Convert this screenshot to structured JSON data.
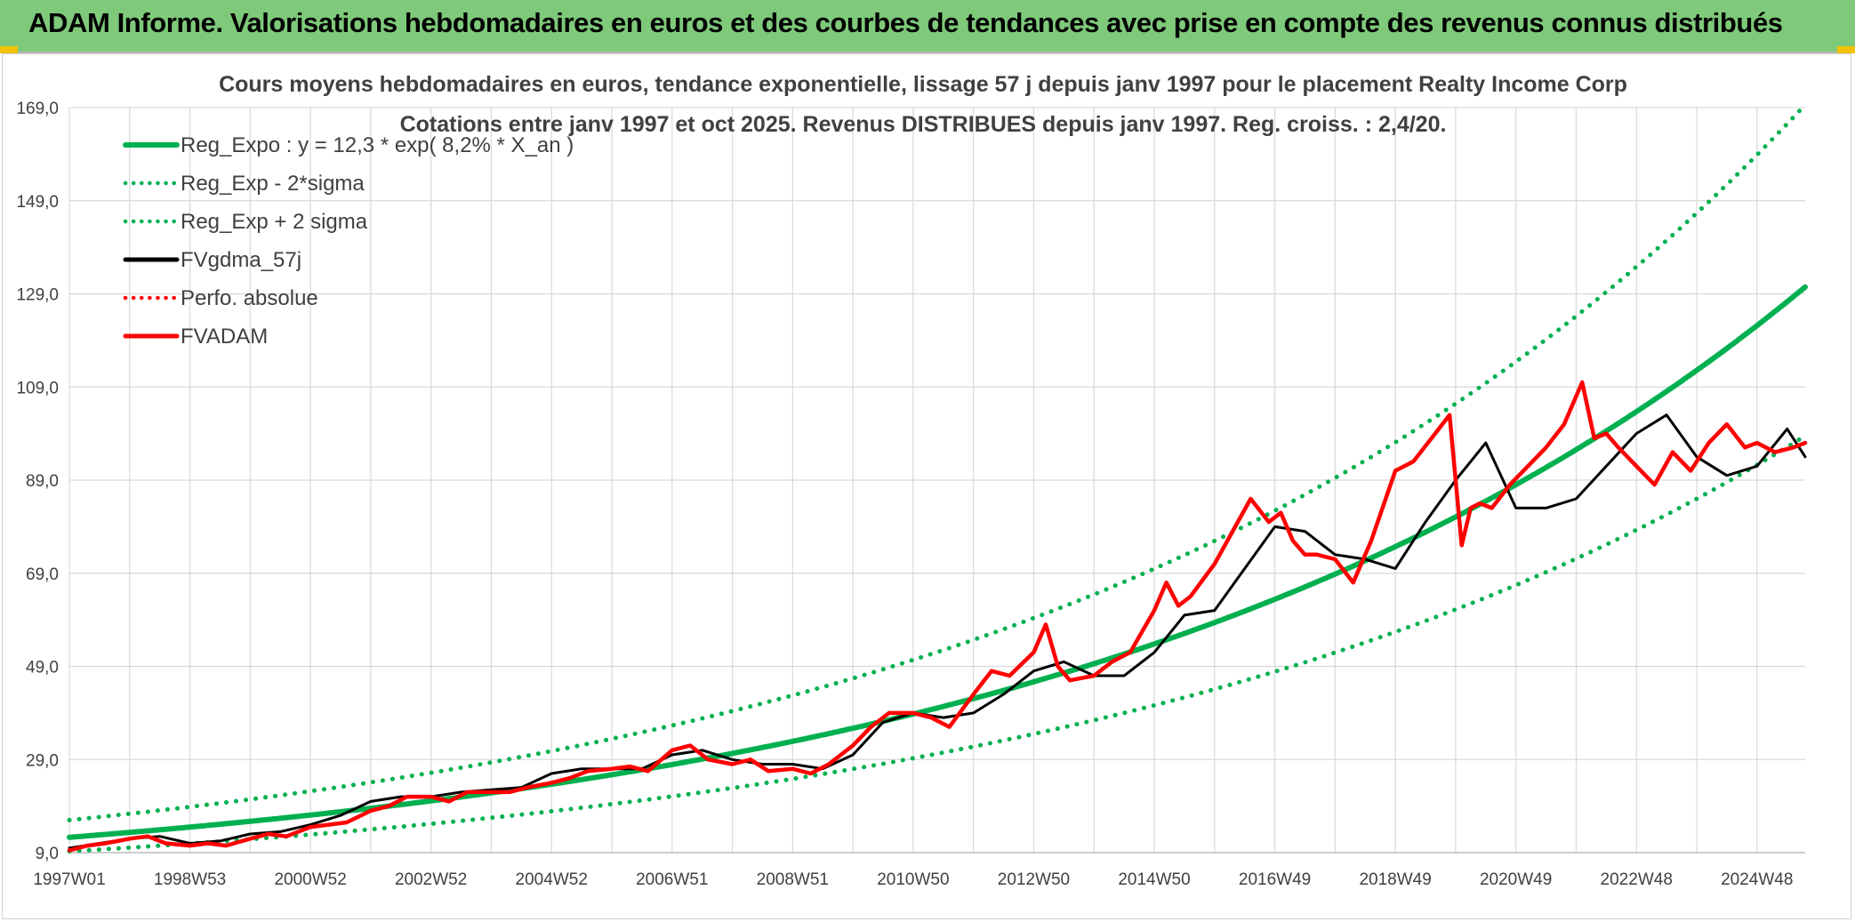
{
  "header": {
    "title": "ADAM Informe. Valorisations hebdomadaires en euros et des courbes de tendances avec prise en compte des revenus connus distribués",
    "background": "#7ec97a"
  },
  "chart_data": {
    "type": "line",
    "title_line1": "Cours moyens hebdomadaires en euros, tendance exponentielle, lissage 57 j depuis janv 1997 pour le placement Realty Income Corp",
    "title_line2": "Cotations entre janv 1997 et oct 2025. Revenus DISTRIBUES depuis janv 1997. Reg. croiss. : 2,4/20.",
    "xlabel": "",
    "ylabel": "",
    "ylim": [
      9,
      169
    ],
    "xlim": [
      1997.0,
      2025.8
    ],
    "y_ticks": [
      "9,0",
      "29,0",
      "49,0",
      "69,0",
      "89,0",
      "109,0",
      "129,0",
      "149,0",
      "169,0"
    ],
    "y_tick_values": [
      9,
      29,
      49,
      69,
      89,
      109,
      129,
      149,
      169
    ],
    "x_ticks": [
      "1997W01",
      "1998W53",
      "2000W52",
      "2002W52",
      "2004W52",
      "2006W51",
      "2008W51",
      "2010W50",
      "2012W50",
      "2014W50",
      "2016W49",
      "2018W49",
      "2020W49",
      "2022W48",
      "2024W48"
    ],
    "x_tick_values": [
      1997.0,
      1999.0,
      2001.0,
      2003.0,
      2005.0,
      2007.0,
      2009.0,
      2011.0,
      2013.0,
      2015.0,
      2017.0,
      2019.0,
      2021.0,
      2023.0,
      2025.0
    ],
    "grid": true,
    "legend_position": "top-left",
    "series": [
      {
        "name": "Reg_Expo : y = 12,3 * exp( 8,2% *  X_an )",
        "style": "solid",
        "color": "#00b050",
        "kind": "exp",
        "a": 12.3,
        "rate": 0.082,
        "factor": 1.0
      },
      {
        "name": "Reg_Exp - 2*sigma",
        "style": "dotted",
        "color": "#00b050",
        "kind": "exp",
        "a": 12.3,
        "rate": 0.082,
        "factor": 0.755
      },
      {
        "name": "Reg_Exp + 2 sigma",
        "style": "dotted",
        "color": "#00b050",
        "kind": "exp",
        "a": 12.3,
        "rate": 0.082,
        "factor": 1.3
      },
      {
        "name": "FVgdma_57j",
        "style": "solid",
        "color": "#000000",
        "kind": "data",
        "x": [
          1997.0,
          1997.5,
          1998.0,
          1998.5,
          1999.0,
          1999.5,
          2000.0,
          2000.5,
          2001.0,
          2001.5,
          2002.0,
          2002.5,
          2003.0,
          2003.5,
          2004.0,
          2004.5,
          2005.0,
          2005.5,
          2006.0,
          2006.5,
          2007.0,
          2007.5,
          2008.0,
          2008.5,
          2009.0,
          2009.5,
          2010.0,
          2010.5,
          2011.0,
          2011.5,
          2012.0,
          2012.5,
          2013.0,
          2013.5,
          2014.0,
          2014.5,
          2015.0,
          2015.5,
          2016.0,
          2016.5,
          2017.0,
          2017.5,
          2018.0,
          2018.5,
          2019.0,
          2019.5,
          2020.0,
          2020.5,
          2021.0,
          2021.5,
          2022.0,
          2022.5,
          2023.0,
          2023.5,
          2024.0,
          2024.5,
          2025.0,
          2025.5,
          2025.8
        ],
        "y": [
          10,
          11,
          12,
          12.5,
          11,
          11.5,
          13,
          13.5,
          15,
          17,
          20,
          21,
          21,
          22,
          22.5,
          23,
          26,
          27,
          27,
          27,
          30,
          31,
          29,
          28,
          28,
          27,
          30,
          37,
          39,
          38,
          39,
          43,
          48,
          50,
          47,
          47,
          52,
          60,
          61,
          70,
          79,
          78,
          73,
          72,
          70,
          80,
          89,
          97,
          83,
          83,
          85,
          92,
          99,
          103,
          94,
          90,
          92,
          100,
          94
        ]
      },
      {
        "name": "Perfo. absolue",
        "style": "dotted",
        "color": "#ff0000",
        "kind": "hidden"
      },
      {
        "name": "FVADAM",
        "style": "solid",
        "color": "#ff0000",
        "kind": "data",
        "x": [
          1997.0,
          1997.3,
          1997.6,
          1998.0,
          1998.3,
          1998.6,
          1999.0,
          1999.3,
          1999.6,
          2000.0,
          2000.3,
          2000.6,
          2001.0,
          2001.3,
          2001.6,
          2002.0,
          2002.3,
          2002.6,
          2003.0,
          2003.3,
          2003.6,
          2004.0,
          2004.3,
          2004.6,
          2005.0,
          2005.3,
          2005.6,
          2006.0,
          2006.3,
          2006.6,
          2007.0,
          2007.3,
          2007.6,
          2008.0,
          2008.3,
          2008.6,
          2009.0,
          2009.3,
          2009.6,
          2010.0,
          2010.3,
          2010.6,
          2011.0,
          2011.3,
          2011.6,
          2012.0,
          2012.3,
          2012.6,
          2013.0,
          2013.2,
          2013.4,
          2013.6,
          2014.0,
          2014.3,
          2014.6,
          2015.0,
          2015.2,
          2015.4,
          2015.6,
          2016.0,
          2016.3,
          2016.6,
          2016.9,
          2017.1,
          2017.3,
          2017.5,
          2017.7,
          2018.0,
          2018.3,
          2018.6,
          2019.0,
          2019.3,
          2019.6,
          2019.9,
          2020.1,
          2020.25,
          2020.4,
          2020.6,
          2020.9,
          2021.2,
          2021.5,
          2021.8,
          2022.1,
          2022.3,
          2022.5,
          2022.7,
          2023.0,
          2023.3,
          2023.6,
          2023.9,
          2024.2,
          2024.5,
          2024.8,
          2025.0,
          2025.3,
          2025.6,
          2025.8
        ],
        "y": [
          9.5,
          10.5,
          11,
          12,
          12.5,
          11,
          10.5,
          11,
          10.5,
          12,
          13,
          12.5,
          14.5,
          15,
          15.5,
          18,
          19,
          21,
          21,
          20,
          22,
          22,
          22,
          23,
          24,
          25,
          26.5,
          27,
          27.5,
          26.5,
          31,
          32,
          29,
          28,
          29,
          26.5,
          27,
          26,
          28,
          32,
          36,
          39,
          39,
          38,
          36,
          43,
          48,
          47,
          52,
          58,
          49,
          46,
          47,
          50,
          52,
          61,
          67,
          62,
          64,
          71,
          78,
          85,
          80,
          82,
          76,
          73,
          73,
          72,
          67,
          76,
          91,
          93,
          98,
          103,
          75,
          83,
          84,
          83,
          88,
          92,
          96,
          101,
          110,
          98,
          99,
          96,
          92,
          88,
          95,
          91,
          97,
          101,
          96,
          97,
          95,
          96,
          97
        ]
      }
    ]
  }
}
